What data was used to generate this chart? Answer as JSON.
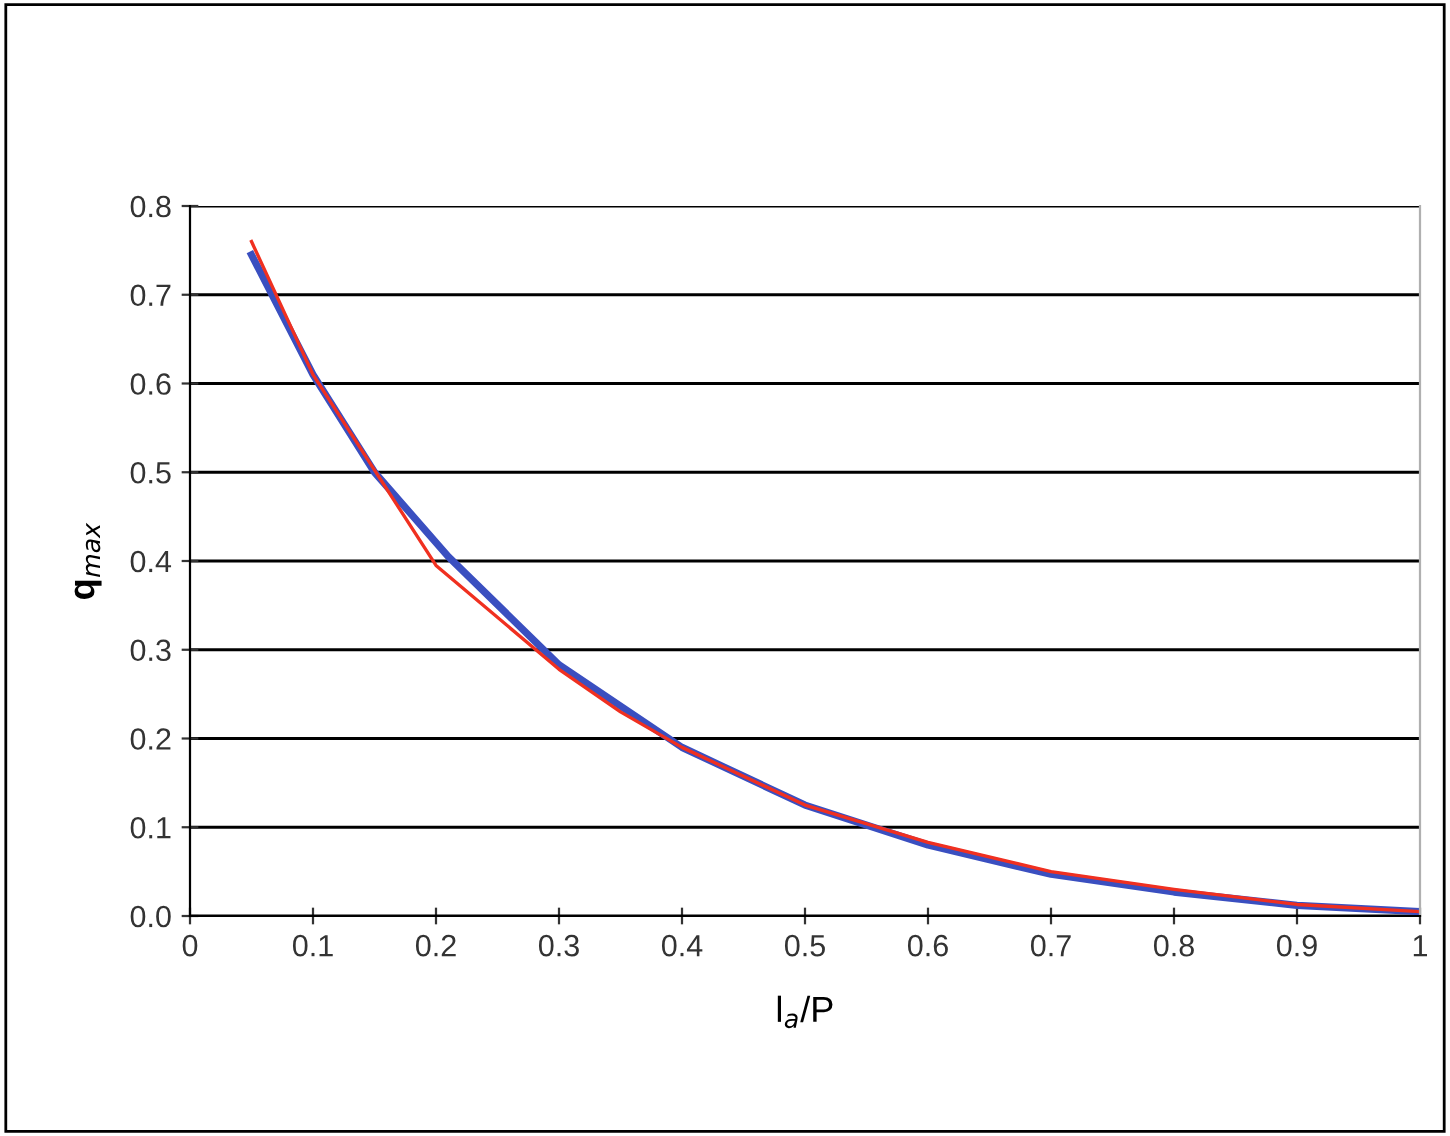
{
  "chart_data": {
    "type": "line",
    "xlabel": "l$_{a}$/P",
    "ylabel": "q$_{max}$",
    "series": [
      {
        "color": "#3a4fc0",
        "x": [
          0.05,
          0.1,
          0.15,
          0.21,
          0.3,
          0.4,
          0.5,
          0.6,
          0.7,
          0.8,
          0.9,
          1.0
        ],
        "values": [
          0.745,
          0.61,
          0.5,
          0.405,
          0.283,
          0.19,
          0.125,
          0.08,
          0.047,
          0.027,
          0.012,
          0.005
        ]
      },
      {
        "color": "#f03020",
        "x": [
          0.05,
          0.1,
          0.2,
          0.3,
          0.35,
          0.4,
          0.5,
          0.6,
          0.7,
          0.8,
          0.9,
          1.0
        ],
        "values": [
          0.76,
          0.61,
          0.395,
          0.278,
          0.23,
          0.19,
          0.125,
          0.083,
          0.05,
          0.03,
          0.013,
          0.005
        ]
      }
    ],
    "xlim": [
      0,
      1
    ],
    "xticks": [
      0,
      0.1,
      0.2,
      0.3,
      0.4,
      0.5,
      0.6,
      0.7,
      0.8,
      0.9,
      1
    ],
    "ylim": [
      0,
      0.8
    ],
    "yticks": [
      {
        "value": 0,
        "label": "0.0"
      },
      0.1,
      0.2,
      0.3,
      0.4,
      0.5,
      0.6,
      0.7,
      0.8
    ],
    "grid": "y",
    "marker": "none",
    "line_style": "solid"
  }
}
